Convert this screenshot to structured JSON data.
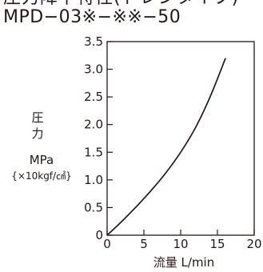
{
  "header": {
    "title_partial": "圧力降下特性(ドレンタイプ)",
    "model": "MPD−03※−※※−50"
  },
  "chart_data": {
    "type": "line",
    "title": "MPD−03※−※※−50",
    "xlabel": "流量 L/min",
    "ylabel_lines": [
      "圧",
      "力",
      "MPa",
      "{×10kgf/㎠}"
    ],
    "xlim": [
      0,
      20
    ],
    "ylim": [
      0,
      3.5
    ],
    "x_ticks": [
      "0",
      "5",
      "10",
      "15",
      "20"
    ],
    "y_ticks": [
      "0",
      "0.5",
      "1.0",
      "1.5",
      "2.0",
      "2.5",
      "3.0",
      "3.5"
    ],
    "grid": false,
    "series": [
      {
        "x": [
          0,
          2,
          4,
          6,
          8,
          10,
          12,
          14,
          16.1
        ],
        "values": [
          0,
          0.25,
          0.52,
          0.81,
          1.13,
          1.5,
          1.94,
          2.5,
          3.2
        ]
      }
    ],
    "colors": {
      "line": "#231815",
      "axis": "#231815"
    }
  }
}
